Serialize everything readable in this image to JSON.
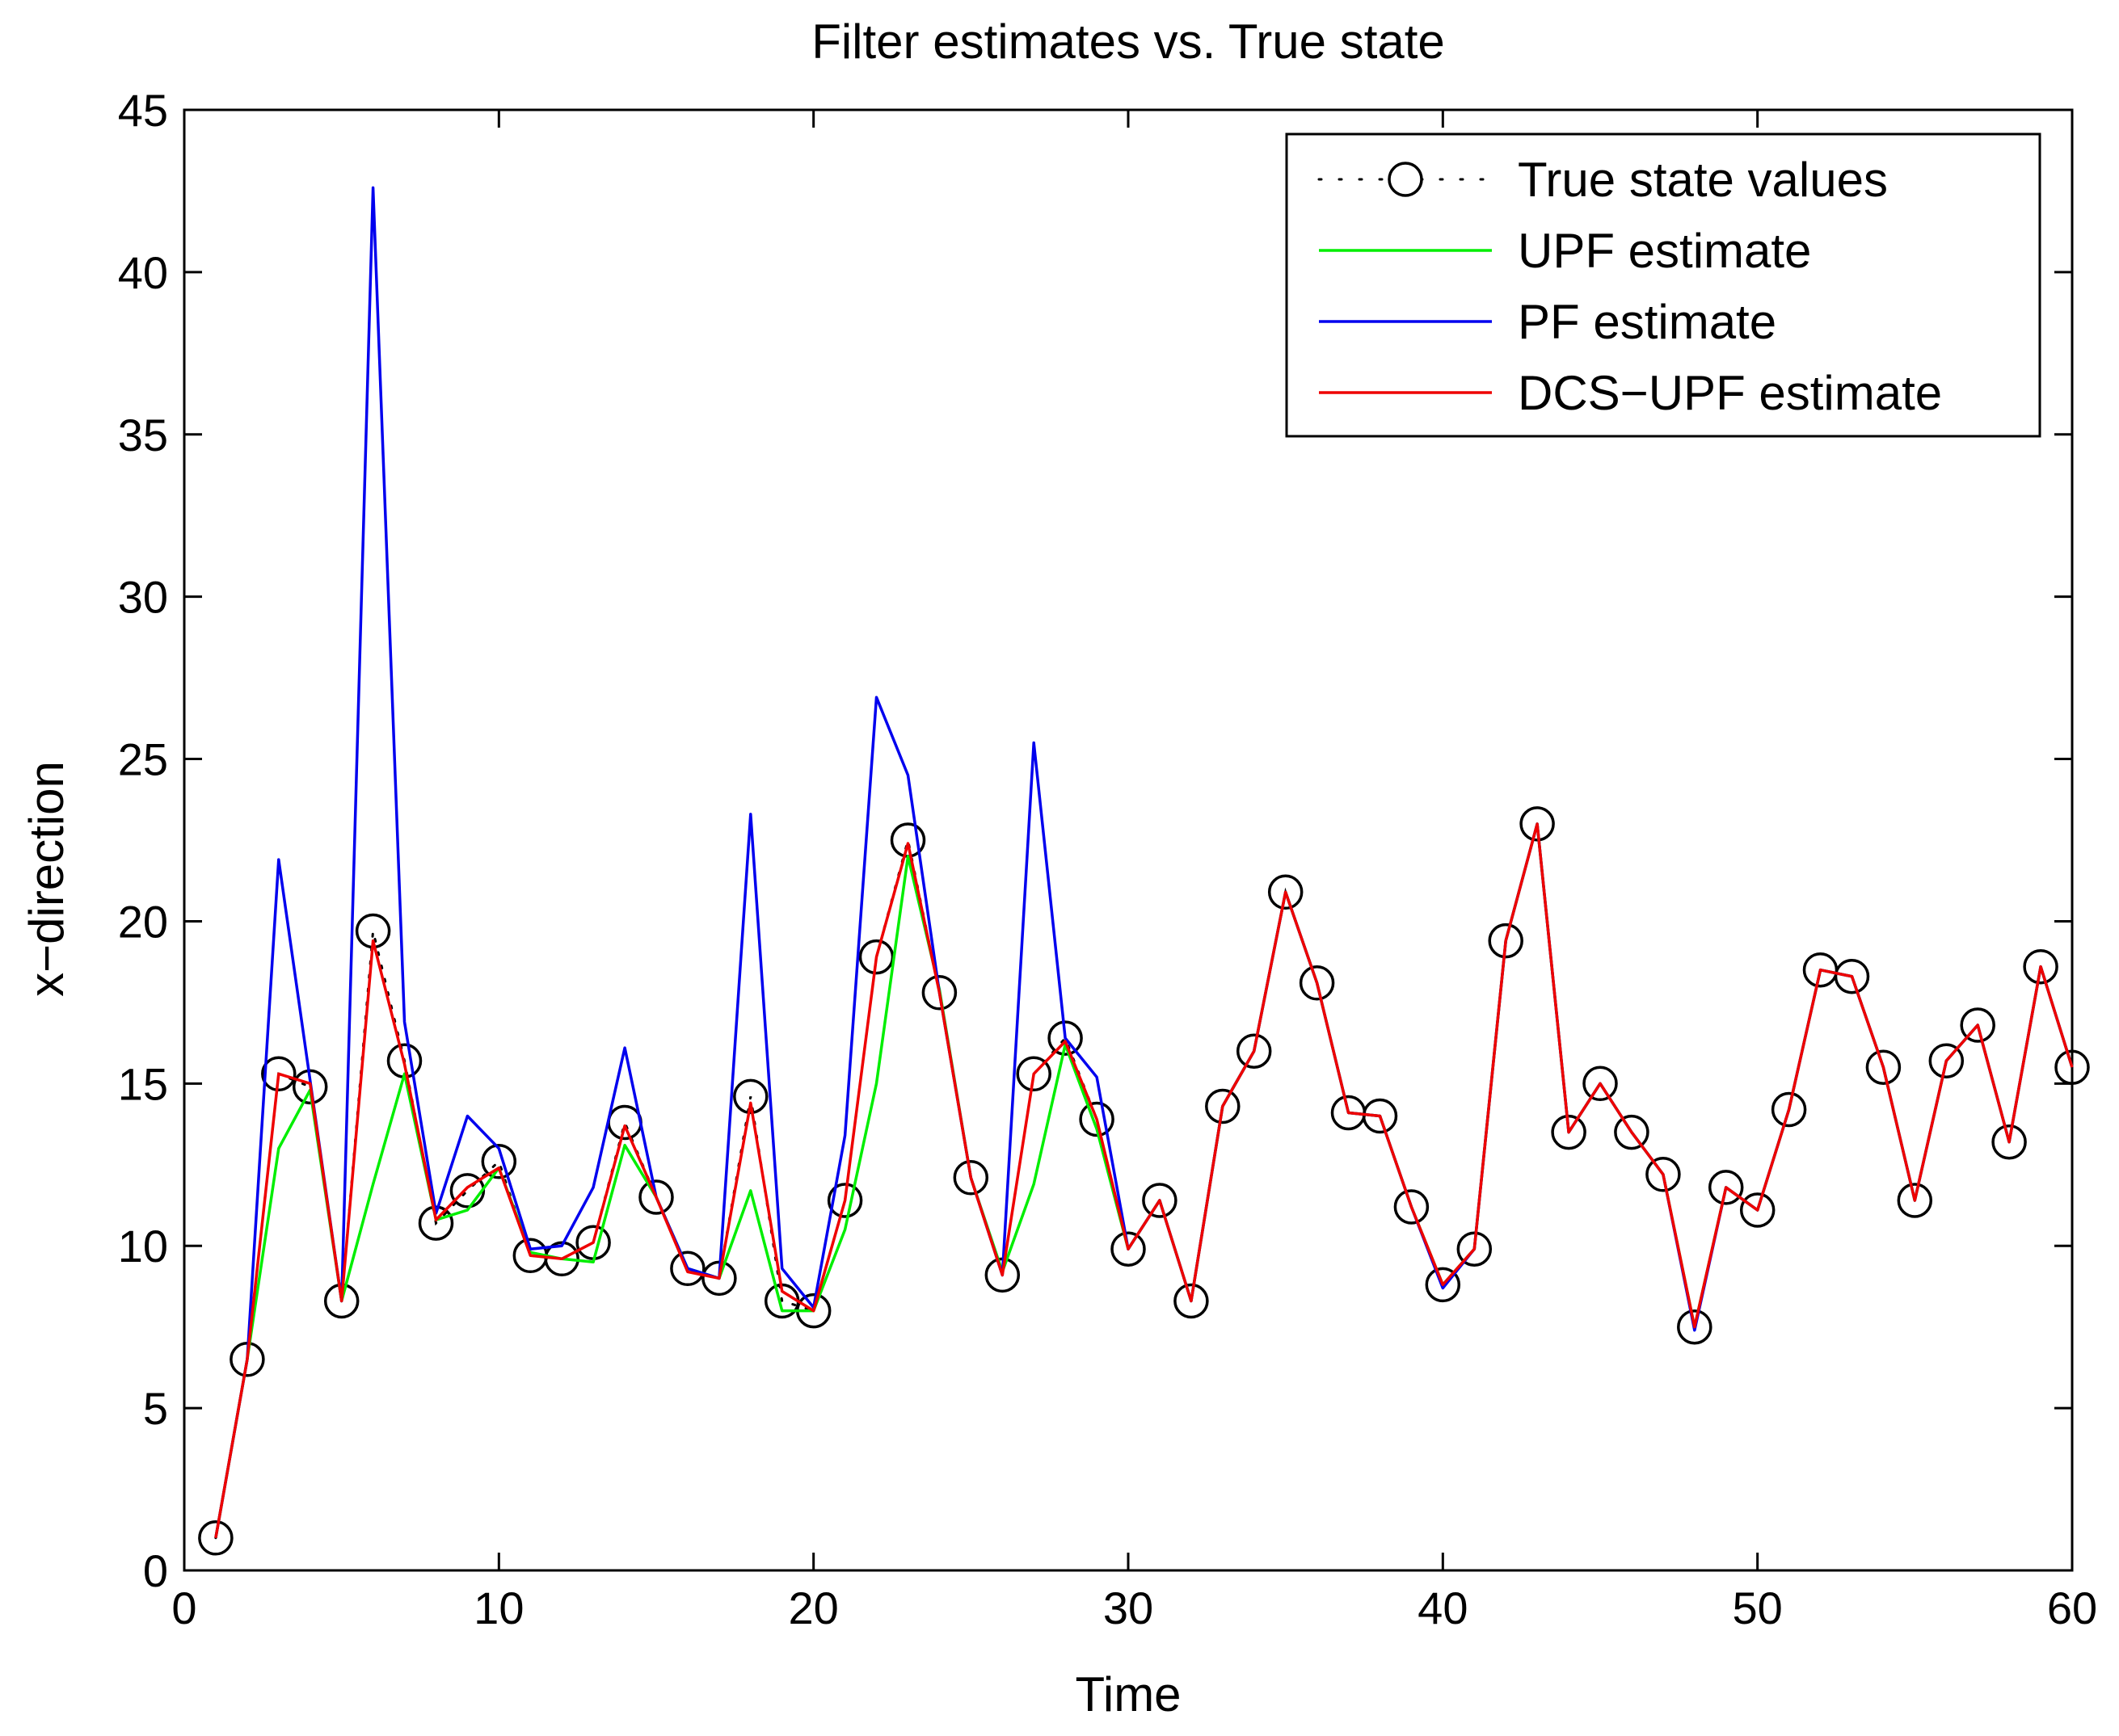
{
  "chart_data": {
    "type": "line",
    "title": "Filter estimates vs. True state",
    "xlabel": "Time",
    "ylabel": "x−direction",
    "xlim": [
      0,
      60
    ],
    "ylim": [
      0,
      45
    ],
    "xticks": [
      0,
      10,
      20,
      30,
      40,
      50,
      60
    ],
    "xtick_labels": [
      "0",
      "10",
      "20",
      "30",
      "40",
      "50",
      "60"
    ],
    "yticks": [
      0,
      5,
      10,
      15,
      20,
      25,
      30,
      35,
      40,
      45
    ],
    "ytick_labels": [
      "0",
      "5",
      "10",
      "15",
      "20",
      "25",
      "30",
      "35",
      "40",
      "45"
    ],
    "grid": false,
    "legend_position": "top-right",
    "x": [
      1,
      2,
      3,
      4,
      5,
      6,
      7,
      8,
      9,
      10,
      11,
      12,
      13,
      14,
      15,
      16,
      17,
      18,
      19,
      20,
      21,
      22,
      23,
      24,
      25,
      26,
      27,
      28,
      29,
      30,
      31,
      32,
      33,
      34,
      35,
      36,
      37,
      38,
      39,
      40,
      41,
      42,
      43,
      44,
      45,
      46,
      47,
      48,
      49,
      50,
      51,
      52,
      53,
      54,
      55,
      56,
      57,
      58,
      59,
      60
    ],
    "series": [
      {
        "name": "True state values",
        "color": "#000000",
        "style": "dotted-circle-markers",
        "values": [
          1.0,
          6.5,
          15.3,
          14.9,
          8.3,
          19.7,
          15.7,
          10.7,
          11.7,
          12.6,
          9.7,
          9.6,
          10.1,
          13.8,
          11.5,
          9.3,
          9.0,
          14.6,
          8.3,
          8.0,
          11.4,
          18.9,
          22.5,
          17.8,
          12.1,
          9.1,
          15.3,
          16.4,
          13.9,
          9.9,
          11.4,
          8.3,
          14.3,
          16.0,
          20.9,
          18.1,
          14.1,
          14.0,
          11.2,
          8.8,
          9.9,
          19.4,
          23.0,
          13.5,
          15.0,
          13.5,
          12.2,
          7.5,
          11.8,
          11.1,
          14.2,
          18.5,
          18.3,
          15.5,
          11.4,
          15.7,
          16.8,
          13.2,
          18.6,
          15.5
        ]
      },
      {
        "name": "UPF estimate",
        "color": "#00ee00",
        "style": "solid",
        "values": [
          1.0,
          6.5,
          13.0,
          14.8,
          8.3,
          11.9,
          15.3,
          10.8,
          11.1,
          12.4,
          9.8,
          9.6,
          9.5,
          13.1,
          11.5,
          9.3,
          9.0,
          11.7,
          8.0,
          8.0,
          10.5,
          15.0,
          22.0,
          17.9,
          12.1,
          9.2,
          11.9,
          16.2,
          13.6,
          9.9,
          11.4,
          8.3,
          14.3,
          16.0,
          20.9,
          18.1,
          14.1,
          14.0,
          11.2,
          8.8,
          9.9,
          19.4,
          23.0,
          13.5,
          15.0,
          13.5,
          12.2,
          7.5,
          11.8,
          11.1,
          14.2,
          18.5,
          18.3,
          15.5,
          11.4,
          15.7,
          16.8,
          13.2,
          18.6,
          15.5
        ]
      },
      {
        "name": "PF estimate",
        "color": "#0000ee",
        "style": "solid",
        "values": [
          1.0,
          6.5,
          21.9,
          15.1,
          8.3,
          42.6,
          16.9,
          11.0,
          14.0,
          13.0,
          9.9,
          10.0,
          11.8,
          16.1,
          11.5,
          9.3,
          9.0,
          23.3,
          9.3,
          8.1,
          13.4,
          26.9,
          24.5,
          17.8,
          12.1,
          9.1,
          25.5,
          16.4,
          15.2,
          9.9,
          11.4,
          8.3,
          14.3,
          16.0,
          20.9,
          18.1,
          14.1,
          14.0,
          11.2,
          8.7,
          9.9,
          19.4,
          23.0,
          13.5,
          15.0,
          13.5,
          12.2,
          7.4,
          11.8,
          11.1,
          14.2,
          18.5,
          18.3,
          15.5,
          11.4,
          15.7,
          16.8,
          13.2,
          18.6,
          15.5
        ]
      },
      {
        "name": "DCS−UPF estimate",
        "color": "#ee0000",
        "style": "solid",
        "values": [
          1.0,
          6.5,
          15.3,
          15.0,
          8.3,
          19.4,
          15.6,
          10.8,
          11.8,
          12.4,
          9.7,
          9.6,
          10.1,
          13.7,
          11.5,
          9.2,
          9.0,
          14.4,
          8.6,
          8.0,
          11.4,
          18.9,
          22.4,
          17.8,
          12.1,
          9.1,
          15.3,
          16.3,
          13.9,
          9.9,
          11.4,
          8.3,
          14.3,
          16.0,
          20.9,
          18.1,
          14.1,
          14.0,
          11.2,
          8.8,
          9.9,
          19.4,
          23.0,
          13.5,
          15.0,
          13.5,
          12.2,
          7.5,
          11.8,
          11.1,
          14.2,
          18.5,
          18.3,
          15.5,
          11.4,
          15.7,
          16.8,
          13.2,
          18.6,
          15.5
        ]
      }
    ]
  }
}
